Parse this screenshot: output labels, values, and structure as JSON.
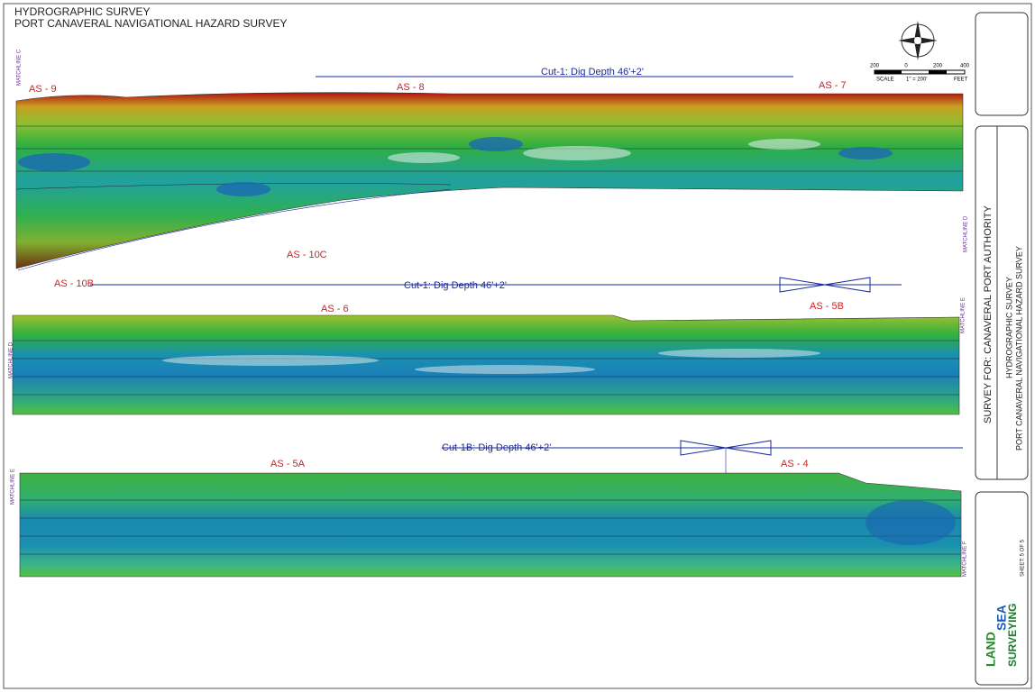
{
  "header": {
    "title": "HYDROGRAPHIC SURVEY",
    "subtitle": "PORT CANAVERAL NAVIGATIONAL HAZARD SURVEY"
  },
  "panels": [
    {
      "cut_label": "Cut-1: Dig Depth 46'+2'",
      "areas": [
        "AS - 9",
        "AS - 8",
        "AS - 7",
        "AS - 10C",
        "AS - 10B"
      ],
      "matchlines": [
        "MATCHLINE C",
        "MATCHLINE D"
      ]
    },
    {
      "cut_label": "Cut-1: Dig Depth 46'+2'",
      "areas": [
        "AS - 6",
        "AS - 5B"
      ],
      "matchlines": [
        "MATCHLINE D",
        "MATCHLINE E"
      ]
    },
    {
      "cut_label": "Cut-1B: Dig Depth 46'+2'",
      "areas": [
        "AS - 5A",
        "AS - 4"
      ],
      "matchlines": [
        "MATCHLINE E",
        "MATCHLINE F"
      ]
    }
  ],
  "scale": {
    "ticks": [
      "200",
      "0",
      "200",
      "400"
    ],
    "label": "SCALE",
    "ratio": "1\" = 200'",
    "unit": "FEET"
  },
  "title_block": {
    "client": "SURVEY FOR: CANAVERAL PORT AUTHORITY",
    "project": [
      "HYDROGRAPHIC SURVEY",
      "PORT CANAVERAL NAVIGATIONAL HAZARD SURVEY"
    ],
    "sheet": "SHEET: 5 OF 5",
    "company": [
      "LAND",
      "SEA",
      "SURVEYING"
    ]
  }
}
